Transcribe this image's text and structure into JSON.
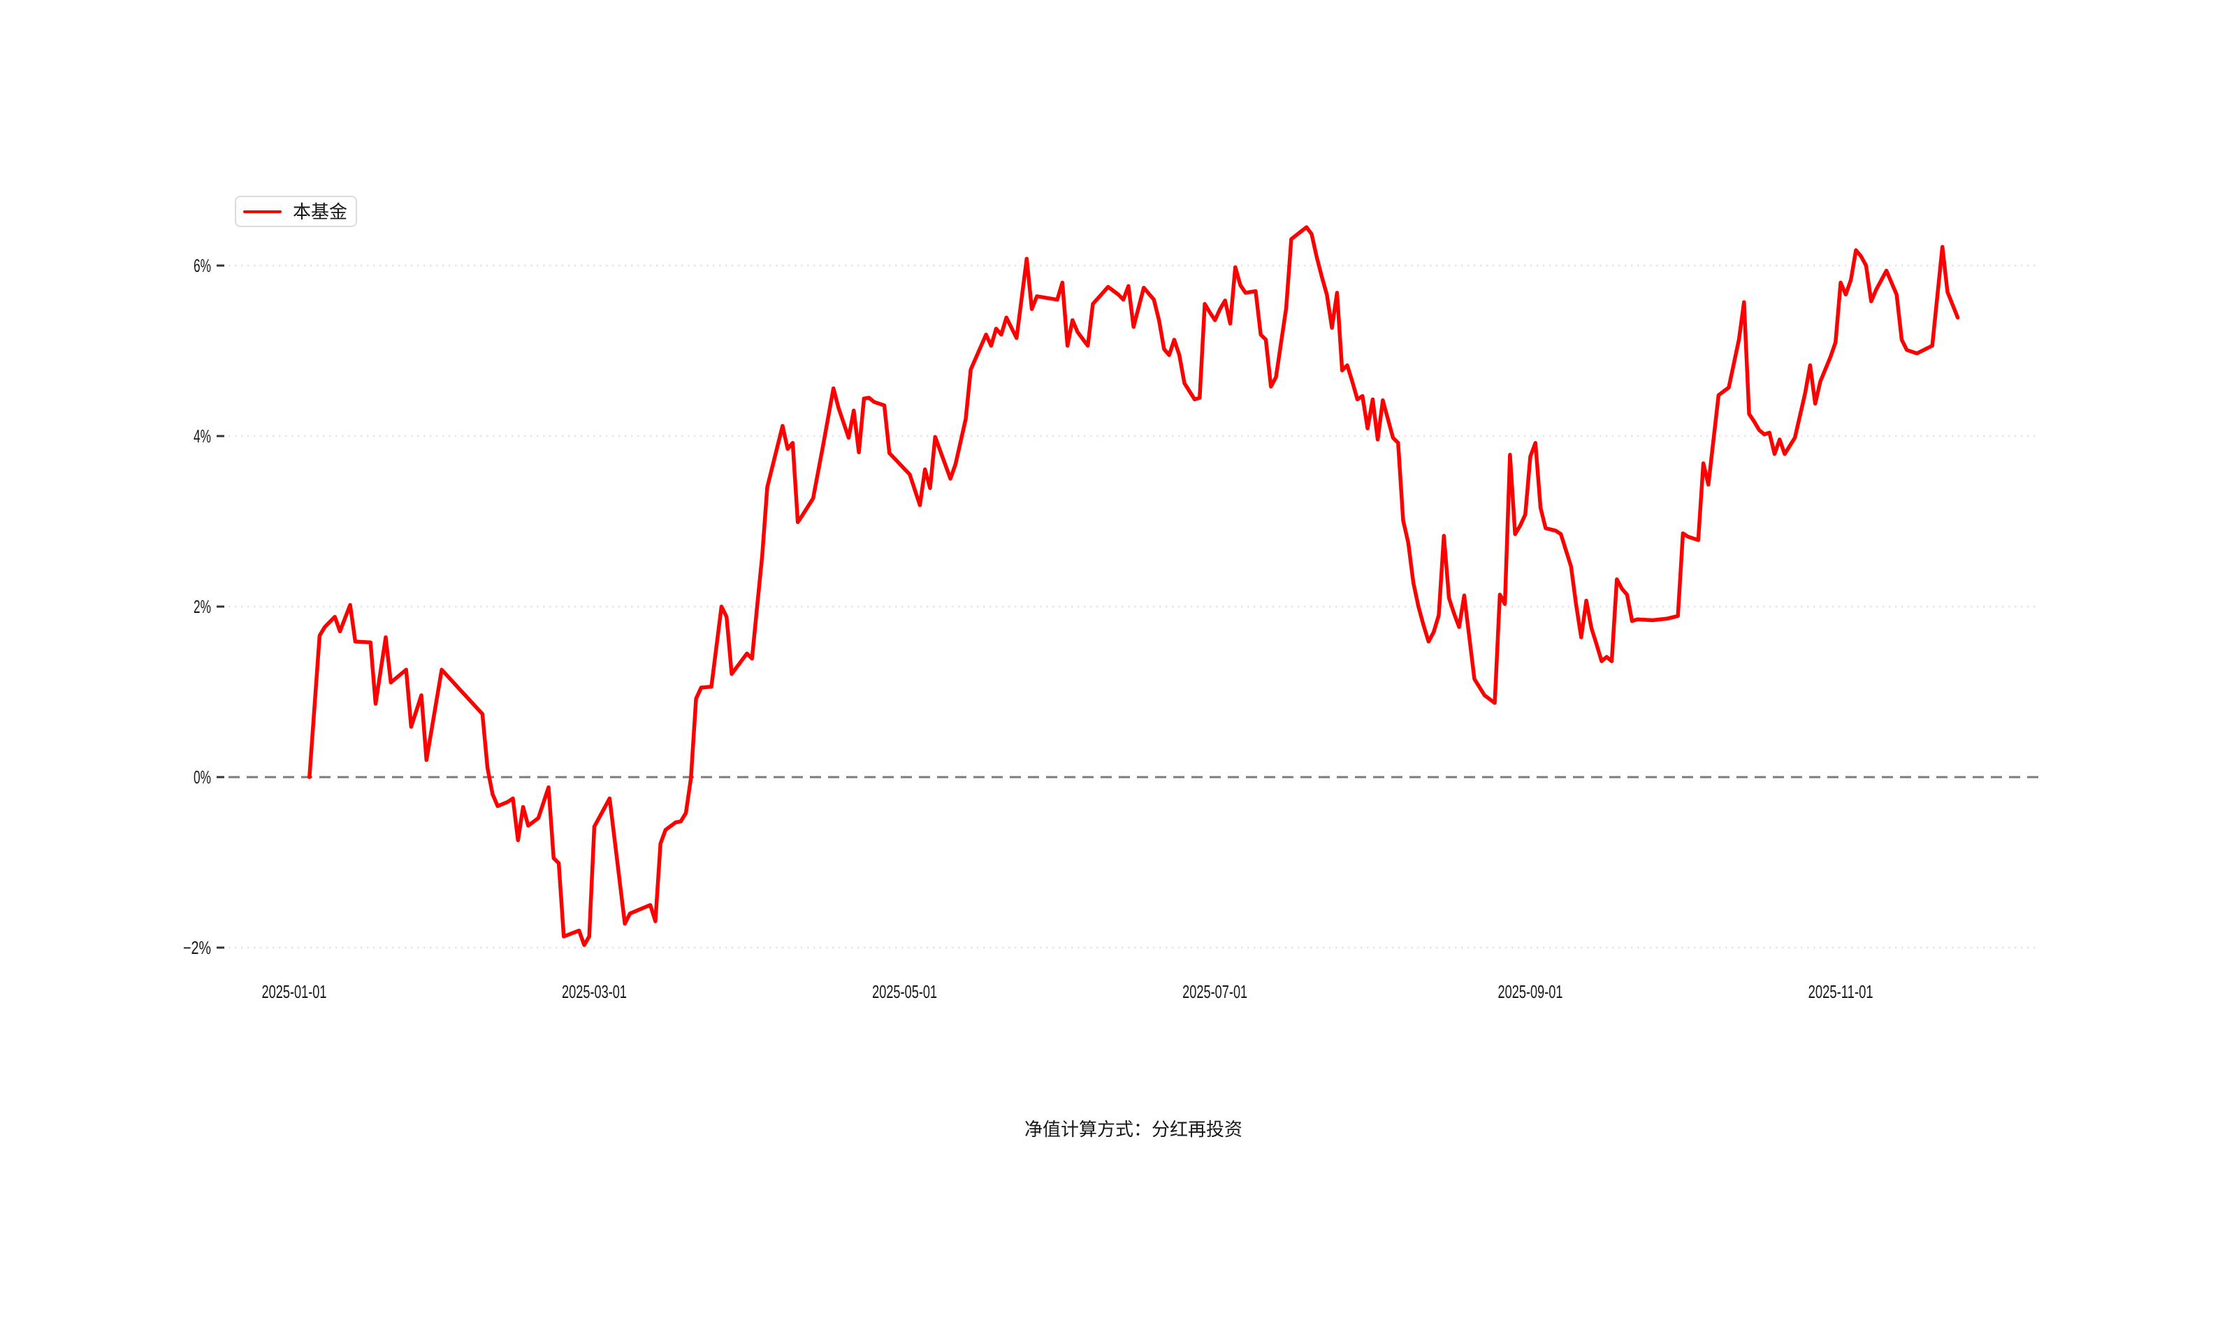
{
  "page": {
    "background": "#ffffff"
  },
  "legend": {
    "label": "本基金",
    "line_color": "#ff0000"
  },
  "footer": {
    "note": "净值计算方式：分红再投资"
  },
  "chart_data": {
    "type": "line",
    "title": "",
    "xlabel": "",
    "ylabel": "",
    "unit": "percent",
    "grid": {
      "style": "dotted",
      "color": "#e4e4e4",
      "on": true
    },
    "zero_line": {
      "value": 0,
      "style": "dashed",
      "color": "#7b7b7b"
    },
    "legend_position": "top-left",
    "ylim": [
      -2.7,
      6.9
    ],
    "y_ticks": [
      {
        "label": "6%",
        "value": 6
      },
      {
        "label": "4%",
        "value": 4
      },
      {
        "label": "2%",
        "value": 2
      },
      {
        "label": "0%",
        "value": 0
      },
      {
        "label": "−2%",
        "value": -2
      }
    ],
    "x_ticks": [
      {
        "label": "2025-01-01",
        "date": "2025-01-01"
      },
      {
        "label": "2025-03-01",
        "date": "2025-03-01"
      },
      {
        "label": "2025-05-01",
        "date": "2025-05-01"
      },
      {
        "label": "2025-07-01",
        "date": "2025-07-01"
      },
      {
        "label": "2025-09-01",
        "date": "2025-09-01"
      },
      {
        "label": "2025-11-01",
        "date": "2025-11-01"
      }
    ],
    "series": [
      {
        "name": "本基金",
        "color": "#ff0000",
        "points": [
          [
            "2025-01-04",
            0.0
          ],
          [
            "2025-01-06",
            1.66
          ],
          [
            "2025-01-07",
            1.76
          ],
          [
            "2025-01-09",
            1.88
          ],
          [
            "2025-01-10",
            1.71
          ],
          [
            "2025-01-12",
            2.02
          ],
          [
            "2025-01-13",
            1.59
          ],
          [
            "2025-01-16",
            1.58
          ],
          [
            "2025-01-17",
            0.86
          ],
          [
            "2025-01-19",
            1.64
          ],
          [
            "2025-01-20",
            1.11
          ],
          [
            "2025-01-23",
            1.26
          ],
          [
            "2025-01-24",
            0.59
          ],
          [
            "2025-01-26",
            0.96
          ],
          [
            "2025-01-27",
            0.2
          ],
          [
            "2025-01-30",
            1.26
          ],
          [
            "2025-02-03",
            1.0
          ],
          [
            "2025-02-07",
            0.74
          ],
          [
            "2025-02-08",
            0.11
          ],
          [
            "2025-02-09",
            -0.2
          ],
          [
            "2025-02-10",
            -0.34
          ],
          [
            "2025-02-12",
            -0.29
          ],
          [
            "2025-02-13",
            -0.25
          ],
          [
            "2025-02-14",
            -0.74
          ],
          [
            "2025-02-15",
            -0.35
          ],
          [
            "2025-02-16",
            -0.57
          ],
          [
            "2025-02-18",
            -0.48
          ],
          [
            "2025-02-20",
            -0.12
          ],
          [
            "2025-02-21",
            -0.95
          ],
          [
            "2025-02-22",
            -1.01
          ],
          [
            "2025-02-23",
            -1.87
          ],
          [
            "2025-02-26",
            -1.8
          ],
          [
            "2025-02-27",
            -1.97
          ],
          [
            "2025-02-28",
            -1.87
          ],
          [
            "2025-03-01",
            -0.58
          ],
          [
            "2025-03-04",
            -0.25
          ],
          [
            "2025-03-07",
            -1.72
          ],
          [
            "2025-03-08",
            -1.6
          ],
          [
            "2025-03-12",
            -1.5
          ],
          [
            "2025-03-13",
            -1.69
          ],
          [
            "2025-03-14",
            -0.78
          ],
          [
            "2025-03-15",
            -0.62
          ],
          [
            "2025-03-17",
            -0.53
          ],
          [
            "2025-03-18",
            -0.52
          ],
          [
            "2025-03-19",
            -0.42
          ],
          [
            "2025-03-20",
            -0.01
          ],
          [
            "2025-03-21",
            0.92
          ],
          [
            "2025-03-22",
            1.05
          ],
          [
            "2025-03-24",
            1.06
          ],
          [
            "2025-03-26",
            2.0
          ],
          [
            "2025-03-27",
            1.88
          ],
          [
            "2025-03-28",
            1.21
          ],
          [
            "2025-03-31",
            1.45
          ],
          [
            "2025-04-01",
            1.39
          ],
          [
            "2025-04-02",
            2.0
          ],
          [
            "2025-04-03",
            2.6
          ],
          [
            "2025-04-04",
            3.4
          ],
          [
            "2025-04-07",
            4.12
          ],
          [
            "2025-04-08",
            3.85
          ],
          [
            "2025-04-09",
            3.92
          ],
          [
            "2025-04-10",
            2.99
          ],
          [
            "2025-04-11",
            3.08
          ],
          [
            "2025-04-13",
            3.27
          ],
          [
            "2025-04-15",
            3.9
          ],
          [
            "2025-04-17",
            4.56
          ],
          [
            "2025-04-18",
            4.33
          ],
          [
            "2025-04-20",
            3.98
          ],
          [
            "2025-04-21",
            4.3
          ],
          [
            "2025-04-22",
            3.81
          ],
          [
            "2025-04-23",
            4.44
          ],
          [
            "2025-04-24",
            4.45
          ],
          [
            "2025-04-25",
            4.4
          ],
          [
            "2025-04-27",
            4.36
          ],
          [
            "2025-04-28",
            3.8
          ],
          [
            "2025-05-02",
            3.55
          ],
          [
            "2025-05-04",
            3.19
          ],
          [
            "2025-05-05",
            3.61
          ],
          [
            "2025-05-06",
            3.39
          ],
          [
            "2025-05-07",
            3.99
          ],
          [
            "2025-05-10",
            3.5
          ],
          [
            "2025-05-11",
            3.67
          ],
          [
            "2025-05-13",
            4.2
          ],
          [
            "2025-05-14",
            4.78
          ],
          [
            "2025-05-17",
            5.19
          ],
          [
            "2025-05-18",
            5.06
          ],
          [
            "2025-05-19",
            5.26
          ],
          [
            "2025-05-20",
            5.19
          ],
          [
            "2025-05-21",
            5.39
          ],
          [
            "2025-05-23",
            5.15
          ],
          [
            "2025-05-25",
            6.08
          ],
          [
            "2025-05-26",
            5.49
          ],
          [
            "2025-05-27",
            5.64
          ],
          [
            "2025-05-31",
            5.6
          ],
          [
            "2025-06-01",
            5.8
          ],
          [
            "2025-06-02",
            5.06
          ],
          [
            "2025-06-03",
            5.36
          ],
          [
            "2025-06-04",
            5.22
          ],
          [
            "2025-06-06",
            5.06
          ],
          [
            "2025-06-07",
            5.55
          ],
          [
            "2025-06-10",
            5.75
          ],
          [
            "2025-06-12",
            5.66
          ],
          [
            "2025-06-13",
            5.6
          ],
          [
            "2025-06-14",
            5.76
          ],
          [
            "2025-06-15",
            5.28
          ],
          [
            "2025-06-17",
            5.74
          ],
          [
            "2025-06-19",
            5.6
          ],
          [
            "2025-06-20",
            5.36
          ],
          [
            "2025-06-21",
            5.02
          ],
          [
            "2025-06-22",
            4.95
          ],
          [
            "2025-06-23",
            5.13
          ],
          [
            "2025-06-24",
            4.95
          ],
          [
            "2025-06-25",
            4.62
          ],
          [
            "2025-06-27",
            4.43
          ],
          [
            "2025-06-28",
            4.45
          ],
          [
            "2025-06-29",
            5.55
          ],
          [
            "2025-06-30",
            5.45
          ],
          [
            "2025-07-01",
            5.36
          ],
          [
            "2025-07-02",
            5.49
          ],
          [
            "2025-07-03",
            5.59
          ],
          [
            "2025-07-04",
            5.32
          ],
          [
            "2025-07-05",
            5.98
          ],
          [
            "2025-07-06",
            5.77
          ],
          [
            "2025-07-07",
            5.68
          ],
          [
            "2025-07-09",
            5.7
          ],
          [
            "2025-07-10",
            5.19
          ],
          [
            "2025-07-11",
            5.13
          ],
          [
            "2025-07-12",
            4.58
          ],
          [
            "2025-07-13",
            4.69
          ],
          [
            "2025-07-15",
            5.5
          ],
          [
            "2025-07-16",
            6.31
          ],
          [
            "2025-07-19",
            6.45
          ],
          [
            "2025-07-20",
            6.37
          ],
          [
            "2025-07-21",
            6.1
          ],
          [
            "2025-07-22",
            5.87
          ],
          [
            "2025-07-23",
            5.66
          ],
          [
            "2025-07-24",
            5.27
          ],
          [
            "2025-07-25",
            5.68
          ],
          [
            "2025-07-26",
            4.77
          ],
          [
            "2025-07-27",
            4.83
          ],
          [
            "2025-07-28",
            4.64
          ],
          [
            "2025-07-29",
            4.43
          ],
          [
            "2025-07-30",
            4.47
          ],
          [
            "2025-07-31",
            4.09
          ],
          [
            "2025-08-01",
            4.43
          ],
          [
            "2025-08-02",
            3.96
          ],
          [
            "2025-08-03",
            4.42
          ],
          [
            "2025-08-05",
            3.98
          ],
          [
            "2025-08-06",
            3.92
          ],
          [
            "2025-08-07",
            3.01
          ],
          [
            "2025-08-08",
            2.75
          ],
          [
            "2025-08-09",
            2.28
          ],
          [
            "2025-08-10",
            2.0
          ],
          [
            "2025-08-11",
            1.78
          ],
          [
            "2025-08-12",
            1.59
          ],
          [
            "2025-08-13",
            1.7
          ],
          [
            "2025-08-14",
            1.9
          ],
          [
            "2025-08-15",
            2.83
          ],
          [
            "2025-08-16",
            2.1
          ],
          [
            "2025-08-17",
            1.92
          ],
          [
            "2025-08-18",
            1.76
          ],
          [
            "2025-08-19",
            2.13
          ],
          [
            "2025-08-21",
            1.15
          ],
          [
            "2025-08-23",
            0.96
          ],
          [
            "2025-08-25",
            0.87
          ],
          [
            "2025-08-26",
            2.14
          ],
          [
            "2025-08-27",
            2.03
          ],
          [
            "2025-08-28",
            3.78
          ],
          [
            "2025-08-29",
            2.85
          ],
          [
            "2025-08-30",
            2.95
          ],
          [
            "2025-08-31",
            3.08
          ],
          [
            "2025-09-01",
            3.76
          ],
          [
            "2025-09-02",
            3.92
          ],
          [
            "2025-09-03",
            3.16
          ],
          [
            "2025-09-04",
            2.92
          ],
          [
            "2025-09-06",
            2.89
          ],
          [
            "2025-09-07",
            2.85
          ],
          [
            "2025-09-08",
            2.66
          ],
          [
            "2025-09-09",
            2.47
          ],
          [
            "2025-09-10",
            2.02
          ],
          [
            "2025-09-11",
            1.64
          ],
          [
            "2025-09-12",
            2.07
          ],
          [
            "2025-09-13",
            1.75
          ],
          [
            "2025-09-14",
            1.56
          ],
          [
            "2025-09-15",
            1.36
          ],
          [
            "2025-09-16",
            1.41
          ],
          [
            "2025-09-17",
            1.36
          ],
          [
            "2025-09-18",
            2.32
          ],
          [
            "2025-09-19",
            2.21
          ],
          [
            "2025-09-20",
            2.14
          ],
          [
            "2025-09-21",
            1.83
          ],
          [
            "2025-09-22",
            1.85
          ],
          [
            "2025-09-25",
            1.84
          ],
          [
            "2025-09-28",
            1.86
          ],
          [
            "2025-09-30",
            1.89
          ],
          [
            "2025-10-01",
            2.86
          ],
          [
            "2025-10-02",
            2.82
          ],
          [
            "2025-10-04",
            2.78
          ],
          [
            "2025-10-05",
            3.68
          ],
          [
            "2025-10-06",
            3.43
          ],
          [
            "2025-10-08",
            4.48
          ],
          [
            "2025-10-10",
            4.57
          ],
          [
            "2025-10-12",
            5.13
          ],
          [
            "2025-10-13",
            5.57
          ],
          [
            "2025-10-14",
            4.26
          ],
          [
            "2025-10-15",
            4.17
          ],
          [
            "2025-10-16",
            4.07
          ],
          [
            "2025-10-17",
            4.02
          ],
          [
            "2025-10-18",
            4.04
          ],
          [
            "2025-10-19",
            3.79
          ],
          [
            "2025-10-20",
            3.96
          ],
          [
            "2025-10-21",
            3.79
          ],
          [
            "2025-10-23",
            3.98
          ],
          [
            "2025-10-25",
            4.5
          ],
          [
            "2025-10-26",
            4.83
          ],
          [
            "2025-10-27",
            4.38
          ],
          [
            "2025-10-28",
            4.64
          ],
          [
            "2025-10-30",
            4.93
          ],
          [
            "2025-10-31",
            5.1
          ],
          [
            "2025-11-01",
            5.8
          ],
          [
            "2025-11-02",
            5.66
          ],
          [
            "2025-11-03",
            5.83
          ],
          [
            "2025-11-04",
            6.18
          ],
          [
            "2025-11-05",
            6.11
          ],
          [
            "2025-11-06",
            6.0
          ],
          [
            "2025-11-07",
            5.58
          ],
          [
            "2025-11-08",
            5.72
          ],
          [
            "2025-11-10",
            5.94
          ],
          [
            "2025-11-12",
            5.66
          ],
          [
            "2025-11-13",
            5.13
          ],
          [
            "2025-11-14",
            5.01
          ],
          [
            "2025-11-16",
            4.97
          ],
          [
            "2025-11-19",
            5.06
          ],
          [
            "2025-11-21",
            6.22
          ],
          [
            "2025-11-22",
            5.69
          ],
          [
            "2025-11-24",
            5.39
          ]
        ]
      }
    ]
  }
}
